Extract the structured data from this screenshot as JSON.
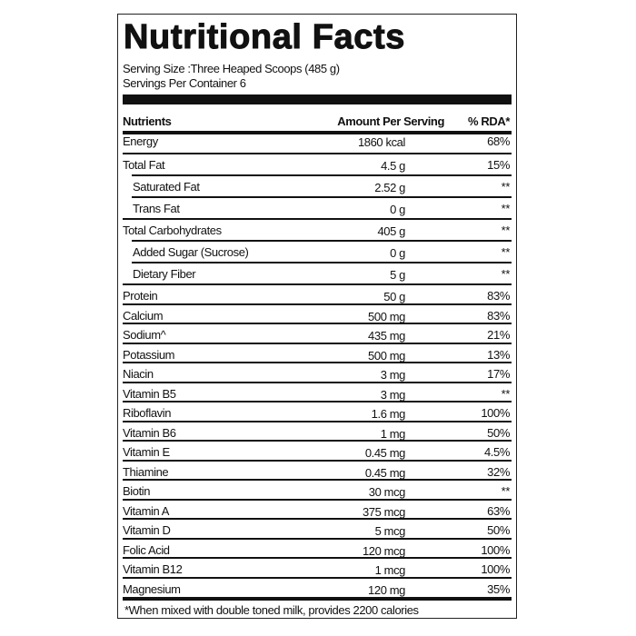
{
  "title": "Nutritional Facts",
  "serving_size": "Serving Size :Three Heaped Scoops (485 g)",
  "servings_per_container": "Servings Per Container 6",
  "headers": {
    "nutrient": "Nutrients",
    "amount": "Amount Per Serving",
    "rda": "% RDA*"
  },
  "rows": [
    {
      "name": "Energy",
      "amount": "1860 kcal",
      "rda": "68%",
      "indent": false
    },
    {
      "name": "Total Fat",
      "amount": "4.5 g",
      "rda": "15%",
      "indent": false
    },
    {
      "name": "Saturated Fat",
      "amount": "2.52 g",
      "rda": "**",
      "indent": true
    },
    {
      "name": "Trans Fat",
      "amount": "0 g",
      "rda": "**",
      "indent": true
    },
    {
      "name": "Total Carbohydrates",
      "amount": "405 g",
      "rda": "**",
      "indent": false
    },
    {
      "name": "Added Sugar (Sucrose)",
      "amount": "0 g",
      "rda": "**",
      "indent": true
    },
    {
      "name": "Dietary Fiber",
      "amount": "5 g",
      "rda": "**",
      "indent": true
    },
    {
      "name": "Protein",
      "amount": "50 g",
      "rda": "83%",
      "indent": false
    },
    {
      "name": "Calcium",
      "amount": "500 mg",
      "rda": "83%",
      "indent": false
    },
    {
      "name": "Sodium^",
      "amount": "435 mg",
      "rda": "21%",
      "indent": false
    },
    {
      "name": "Potassium",
      "amount": "500 mg",
      "rda": "13%",
      "indent": false
    },
    {
      "name": "Niacin",
      "amount": "3 mg",
      "rda": "17%",
      "indent": false
    },
    {
      "name": "Vitamin B5",
      "amount": "3 mg",
      "rda": "**",
      "indent": false
    },
    {
      "name": "Riboflavin",
      "amount": "1.6 mg",
      "rda": "100%",
      "indent": false
    },
    {
      "name": "Vitamin B6",
      "amount": "1 mg",
      "rda": "50%",
      "indent": false
    },
    {
      "name": "Vitamin E",
      "amount": "0.45 mg",
      "rda": "4.5%",
      "indent": false
    },
    {
      "name": "Thiamine",
      "amount": "0.45 mg",
      "rda": "32%",
      "indent": false
    },
    {
      "name": "Biotin",
      "amount": "30 mcg",
      "rda": "**",
      "indent": false
    },
    {
      "name": "Vitamin A",
      "amount": "375 mcg",
      "rda": "63%",
      "indent": false
    },
    {
      "name": "Vitamin D",
      "amount": "5 mcg",
      "rda": "50%",
      "indent": false
    },
    {
      "name": "Folic Acid",
      "amount": "120 mcg",
      "rda": "100%",
      "indent": false
    },
    {
      "name": "Vitamin B12",
      "amount": "1 mcg",
      "rda": "100%",
      "indent": false
    },
    {
      "name": "Magnesium",
      "amount": "120 mg",
      "rda": "35%",
      "indent": false
    }
  ],
  "footnote": "*When mixed with double toned milk, provides 2200 calories"
}
